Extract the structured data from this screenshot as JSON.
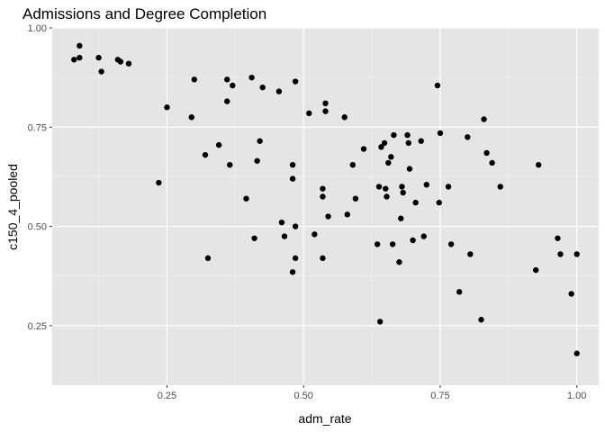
{
  "chart_data": {
    "type": "scatter",
    "title": "Admissions and Degree Completion",
    "xlabel": "adm_rate",
    "ylabel": "c150_4_pooled",
    "xlim": [
      0.04,
      1.04
    ],
    "ylim": [
      0.1,
      1.0
    ],
    "xticks": [
      0.25,
      0.5,
      0.75,
      1.0
    ],
    "xtick_labels": [
      "0.25",
      "0.50",
      "0.75",
      "1.00"
    ],
    "yticks": [
      0.25,
      0.5,
      0.75,
      1.0
    ],
    "ytick_labels": [
      "0.25",
      "0.50",
      "0.75",
      "1.00"
    ],
    "grid": true,
    "background": "#e5e5e5",
    "point_color": "#000000",
    "points": [
      [
        0.08,
        0.92
      ],
      [
        0.09,
        0.955
      ],
      [
        0.09,
        0.925
      ],
      [
        0.125,
        0.925
      ],
      [
        0.13,
        0.89
      ],
      [
        0.16,
        0.92
      ],
      [
        0.165,
        0.915
      ],
      [
        0.18,
        0.91
      ],
      [
        0.235,
        0.61
      ],
      [
        0.25,
        0.8
      ],
      [
        0.295,
        0.775
      ],
      [
        0.3,
        0.87
      ],
      [
        0.32,
        0.68
      ],
      [
        0.325,
        0.42
      ],
      [
        0.345,
        0.705
      ],
      [
        0.36,
        0.87
      ],
      [
        0.36,
        0.815
      ],
      [
        0.365,
        0.655
      ],
      [
        0.37,
        0.855
      ],
      [
        0.395,
        0.57
      ],
      [
        0.405,
        0.875
      ],
      [
        0.41,
        0.47
      ],
      [
        0.415,
        0.665
      ],
      [
        0.42,
        0.715
      ],
      [
        0.425,
        0.85
      ],
      [
        0.455,
        0.84
      ],
      [
        0.46,
        0.51
      ],
      [
        0.465,
        0.475
      ],
      [
        0.48,
        0.385
      ],
      [
        0.48,
        0.655
      ],
      [
        0.48,
        0.62
      ],
      [
        0.485,
        0.5
      ],
      [
        0.485,
        0.865
      ],
      [
        0.485,
        0.42
      ],
      [
        0.51,
        0.785
      ],
      [
        0.52,
        0.48
      ],
      [
        0.535,
        0.595
      ],
      [
        0.535,
        0.575
      ],
      [
        0.535,
        0.42
      ],
      [
        0.54,
        0.81
      ],
      [
        0.54,
        0.79
      ],
      [
        0.545,
        0.525
      ],
      [
        0.575,
        0.775
      ],
      [
        0.58,
        0.53
      ],
      [
        0.59,
        0.655
      ],
      [
        0.595,
        0.57
      ],
      [
        0.61,
        0.695
      ],
      [
        0.635,
        0.455
      ],
      [
        0.638,
        0.6
      ],
      [
        0.64,
        0.26
      ],
      [
        0.642,
        0.7
      ],
      [
        0.648,
        0.71
      ],
      [
        0.65,
        0.595
      ],
      [
        0.652,
        0.575
      ],
      [
        0.655,
        0.66
      ],
      [
        0.66,
        0.675
      ],
      [
        0.663,
        0.455
      ],
      [
        0.665,
        0.73
      ],
      [
        0.675,
        0.41
      ],
      [
        0.678,
        0.52
      ],
      [
        0.68,
        0.6
      ],
      [
        0.682,
        0.585
      ],
      [
        0.69,
        0.73
      ],
      [
        0.692,
        0.71
      ],
      [
        0.694,
        0.645
      ],
      [
        0.7,
        0.465
      ],
      [
        0.705,
        0.56
      ],
      [
        0.715,
        0.715
      ],
      [
        0.72,
        0.475
      ],
      [
        0.725,
        0.605
      ],
      [
        0.745,
        0.855
      ],
      [
        0.748,
        0.56
      ],
      [
        0.75,
        0.735
      ],
      [
        0.765,
        0.6
      ],
      [
        0.77,
        0.455
      ],
      [
        0.785,
        0.335
      ],
      [
        0.8,
        0.725
      ],
      [
        0.805,
        0.43
      ],
      [
        0.825,
        0.265
      ],
      [
        0.83,
        0.77
      ],
      [
        0.835,
        0.685
      ],
      [
        0.845,
        0.66
      ],
      [
        0.86,
        0.6
      ],
      [
        0.925,
        0.39
      ],
      [
        0.93,
        0.655
      ],
      [
        0.965,
        0.47
      ],
      [
        0.97,
        0.43
      ],
      [
        0.99,
        0.33
      ],
      [
        1.0,
        0.43
      ],
      [
        1.0,
        0.18
      ]
    ]
  }
}
